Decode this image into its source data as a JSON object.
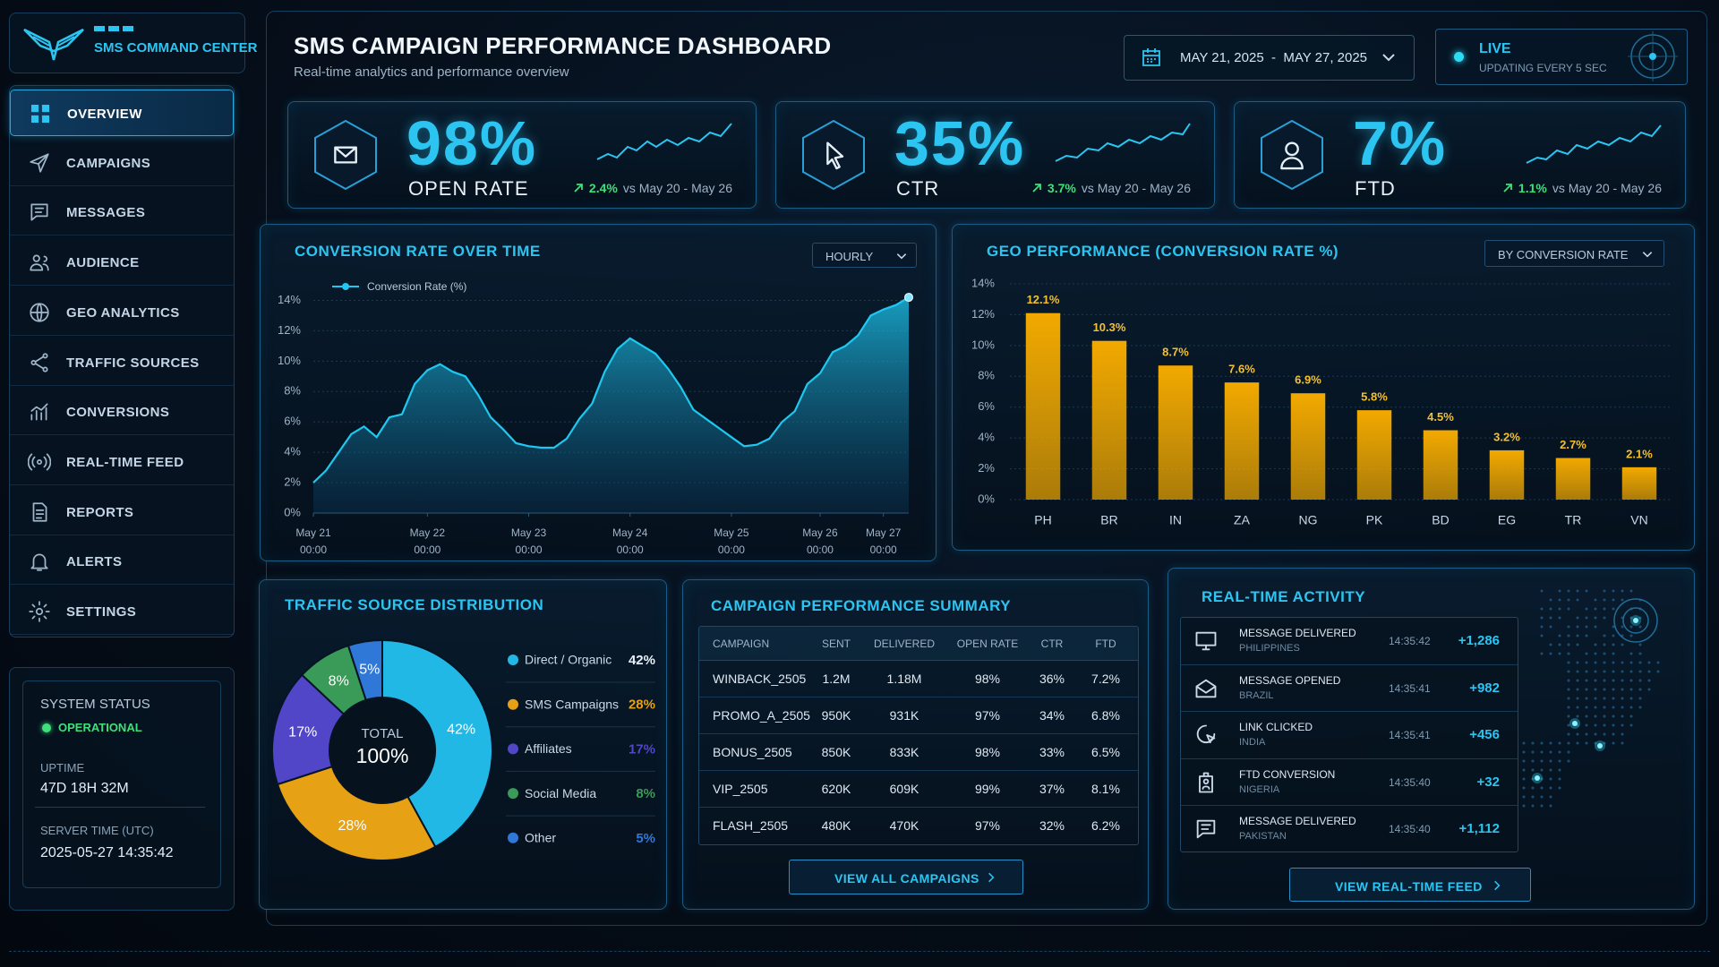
{
  "sidebar": {
    "brand": "SMS COMMAND CENTER",
    "nav": [
      "OVERVIEW",
      "CAMPAIGNS",
      "MESSAGES",
      "AUDIENCE",
      "GEO ANALYTICS",
      "TRAFFIC SOURCES",
      "CONVERSIONS",
      "REAL-TIME FEED",
      "REPORTS",
      "ALERTS",
      "SETTINGS"
    ],
    "status": {
      "title": "SYSTEM STATUS",
      "state": "OPERATIONAL",
      "uptime_label": "UPTIME",
      "uptime": "47D 18H 32M",
      "time_label": "SERVER TIME (UTC)",
      "time": "2025-05-27 14:35:42"
    }
  },
  "header": {
    "title": "SMS CAMPAIGN PERFORMANCE DASHBOARD",
    "subtitle": "Real-time analytics and performance overview",
    "date_range": "MAY 21, 2025  -  MAY 27, 2025",
    "live": "LIVE",
    "live_note": "UPDATING EVERY 5 SEC"
  },
  "kpis": [
    {
      "value": "98%",
      "label": "OPEN RATE",
      "change": "2.4%",
      "comparison": "vs May 20 - May 26"
    },
    {
      "value": "35%",
      "label": "CTR",
      "change": "3.7%",
      "comparison": "vs May 20 - May 26"
    },
    {
      "value": "7%",
      "label": "FTD",
      "change": "1.1%",
      "comparison": "vs May 20 - May 26"
    }
  ],
  "chart_data": [
    {
      "type": "area",
      "title": "CONVERSION RATE OVER TIME",
      "control": "HOURLY",
      "categories": [
        "May 21\n00:00",
        null,
        null,
        null,
        null,
        null,
        null,
        null,
        null,
        "May 22\n00:00",
        null,
        null,
        null,
        null,
        null,
        null,
        null,
        "May 23\n00:00",
        null,
        null,
        null,
        null,
        null,
        null,
        null,
        "May 24\n00:00",
        null,
        null,
        null,
        null,
        null,
        null,
        null,
        "May 25\n00:00",
        null,
        null,
        null,
        null,
        null,
        null,
        "May 26\n00:00",
        null,
        null,
        null,
        null,
        "May 27\n00:00",
        null,
        null
      ],
      "series": [
        {
          "name": "Conversion Rate (%)",
          "color": "#1ec8f0",
          "values": [
            2.0,
            2.8,
            4.0,
            5.2,
            5.7,
            5.0,
            6.3,
            6.5,
            8.5,
            9.4,
            9.8,
            9.3,
            9.0,
            7.8,
            6.3,
            5.5,
            4.6,
            4.4,
            4.3,
            4.3,
            4.9,
            6.2,
            7.2,
            9.3,
            10.8,
            11.5,
            11.0,
            10.5,
            9.5,
            8.3,
            6.8,
            6.2,
            5.6,
            5.0,
            4.4,
            4.5,
            4.9,
            6.0,
            6.7,
            8.5,
            9.2,
            10.6,
            11.0,
            11.7,
            13.0,
            13.4,
            13.7,
            14.2
          ]
        }
      ],
      "ylim": [
        0,
        15
      ],
      "yticks": [
        {
          "value": 0,
          "label": "0%"
        },
        {
          "value": 2,
          "label": "2%"
        },
        {
          "value": 4,
          "label": "4%"
        },
        {
          "value": 6,
          "label": "6%"
        },
        {
          "value": 8,
          "label": "8%"
        },
        {
          "value": 10,
          "label": "10%"
        },
        {
          "value": 12,
          "label": "12%"
        },
        {
          "value": 14,
          "label": "14%"
        }
      ],
      "grid": true
    },
    {
      "type": "bar",
      "title": "GEO PERFORMANCE (CONVERSION RATE %)",
      "control": "BY CONVERSION RATE",
      "categories": [
        "PH",
        "BR",
        "IN",
        "ZA",
        "NG",
        "PK",
        "BD",
        "EG",
        "TR",
        "VN"
      ],
      "values": [
        12.1,
        10.3,
        8.7,
        7.6,
        6.9,
        5.8,
        4.5,
        3.2,
        2.7,
        2.1
      ],
      "value_labels": [
        "12.1%",
        "10.3%",
        "8.7%",
        "7.6%",
        "6.9%",
        "5.8%",
        "4.5%",
        "3.2%",
        "2.7%",
        "2.1%"
      ],
      "color": "#f2a900",
      "ylim": [
        0,
        14
      ],
      "yticks": [
        {
          "value": 0,
          "label": "0%"
        },
        {
          "value": 2,
          "label": "2%"
        },
        {
          "value": 4,
          "label": "4%"
        },
        {
          "value": 6,
          "label": "6%"
        },
        {
          "value": 8,
          "label": "8%"
        },
        {
          "value": 10,
          "label": "10%"
        },
        {
          "value": 12,
          "label": "12%"
        },
        {
          "value": 14,
          "label": "14%"
        }
      ],
      "grid": true
    },
    {
      "type": "donut",
      "title": "TRAFFIC SOURCE DISTRIBUTION",
      "categories": [
        "Direct / Organic",
        "SMS Campaigns",
        "Affiliates",
        "Social Media",
        "Other"
      ],
      "values": [
        42,
        28,
        17,
        8,
        5
      ],
      "value_labels": [
        "42%",
        "28%",
        "17%",
        "8%",
        "5%"
      ],
      "colors": [
        "#22b8e6",
        "#e6a114",
        "#5145c8",
        "#3a9a58",
        "#2f78d8"
      ],
      "center_label": "TOTAL",
      "center_value": "100%"
    }
  ],
  "campaigns": {
    "title": "CAMPAIGN PERFORMANCE SUMMARY",
    "columns": [
      "CAMPAIGN",
      "SENT",
      "DELIVERED",
      "OPEN RATE",
      "CTR",
      "FTD"
    ],
    "rows": [
      [
        "WINBACK_2505",
        "1.2M",
        "1.18M",
        "98%",
        "36%",
        "7.2%"
      ],
      [
        "PROMO_A_2505",
        "950K",
        "931K",
        "97%",
        "34%",
        "6.8%"
      ],
      [
        "BONUS_2505",
        "850K",
        "833K",
        "98%",
        "33%",
        "6.5%"
      ],
      [
        "VIP_2505",
        "620K",
        "609K",
        "99%",
        "37%",
        "8.1%"
      ],
      [
        "FLASH_2505",
        "480K",
        "470K",
        "97%",
        "32%",
        "6.2%"
      ]
    ],
    "button": "VIEW ALL CAMPAIGNS"
  },
  "activity": {
    "title": "REAL-TIME ACTIVITY",
    "items": [
      {
        "event": "MESSAGE DELIVERED",
        "country": "PHILIPPINES",
        "time": "14:35:42",
        "count": "+1,286"
      },
      {
        "event": "MESSAGE OPENED",
        "country": "BRAZIL",
        "time": "14:35:41",
        "count": "+982"
      },
      {
        "event": "LINK CLICKED",
        "country": "INDIA",
        "time": "14:35:41",
        "count": "+456"
      },
      {
        "event": "FTD CONVERSION",
        "country": "NIGERIA",
        "time": "14:35:40",
        "count": "+32"
      },
      {
        "event": "MESSAGE DELIVERED",
        "country": "PAKISTAN",
        "time": "14:35:40",
        "count": "+1,112"
      }
    ],
    "button": "VIEW REAL-TIME FEED"
  }
}
